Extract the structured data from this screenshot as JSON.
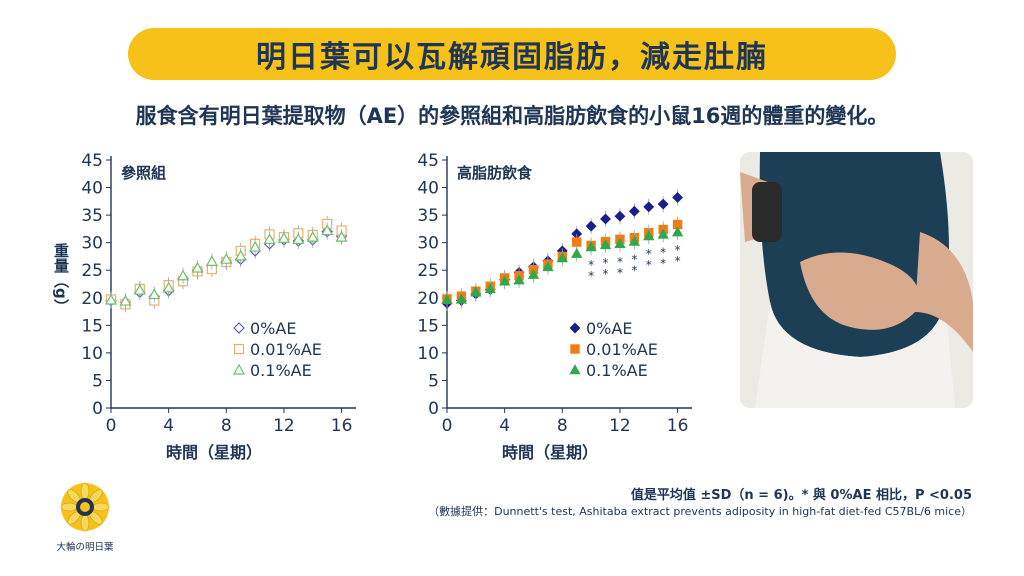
{
  "title": "明日葉可以瓦解頑固脂肪，減走肚腩",
  "subtitle": "服食含有明日葉提取物（AE）的參照組和高脂肪飲食的小鼠16週的體重的變化。",
  "note": "值是平均值 ±SD（n = 6)。* 與 0%AE 相比，P <0.05",
  "source": "（數據提供：Dunnett's test, Ashitaba extract prevents adiposity in high-fat diet-fed C57BL/6 mice）",
  "logo": {
    "text": "大輪の明日葉",
    "icon": "sunflower-icon"
  },
  "photo": {
    "icon": "belly-photo"
  },
  "colors": {
    "banner": "#f6c21a",
    "text": "#1f3554",
    "series_0": "#1b1f8a",
    "series_001": "#f07d12",
    "series_01": "#2ea84a"
  },
  "chart_data": [
    {
      "type": "scatter",
      "panel_title": "參照組",
      "xlabel": "時間（星期）",
      "ylabel": "重量（g）",
      "xlim": [
        0,
        17
      ],
      "ylim": [
        0,
        45
      ],
      "xticks": [
        0,
        4,
        8,
        12,
        16
      ],
      "yticks": [
        0,
        5,
        10,
        15,
        20,
        25,
        30,
        35,
        40,
        45
      ],
      "legend": "bottom-right",
      "x": [
        0,
        1,
        2,
        3,
        4,
        5,
        6,
        7,
        8,
        9,
        10,
        11,
        12,
        13,
        14,
        15,
        16
      ],
      "series": [
        {
          "name": "0%AE",
          "marker": "diamond-open",
          "values": [
            19.5,
            19.2,
            21.0,
            20.2,
            21.3,
            23.5,
            25.0,
            25.8,
            26.5,
            27.0,
            28.5,
            29.8,
            30.5,
            30.3,
            30.5,
            32.0,
            31.2
          ]
        },
        {
          "name": "0.01%AE",
          "marker": "square-open",
          "values": [
            19.7,
            18.8,
            21.6,
            19.5,
            22.3,
            23.0,
            24.8,
            25.2,
            26.5,
            28.5,
            29.8,
            31.5,
            31.0,
            31.7,
            31.4,
            33.4,
            32.2
          ]
        },
        {
          "name": "0.1%AE",
          "marker": "triangle-open",
          "values": [
            19.6,
            19.4,
            21.4,
            20.6,
            21.8,
            24.0,
            25.4,
            26.6,
            27.0,
            27.6,
            29.2,
            30.6,
            30.8,
            30.6,
            31.0,
            32.2,
            31.0
          ]
        }
      ]
    },
    {
      "type": "scatter",
      "panel_title": "高脂肪飲食",
      "xlabel": "時間（星期）",
      "xlim": [
        0,
        17
      ],
      "ylim": [
        0,
        45
      ],
      "xticks": [
        0,
        4,
        8,
        12,
        16
      ],
      "yticks": [
        0,
        5,
        10,
        15,
        20,
        25,
        30,
        35,
        40,
        45
      ],
      "legend": "bottom-right",
      "x": [
        0,
        1,
        2,
        3,
        4,
        5,
        6,
        7,
        8,
        9,
        10,
        11,
        12,
        13,
        14,
        15,
        16
      ],
      "series": [
        {
          "name": "0%AE",
          "marker": "diamond-filled",
          "values": [
            19.0,
            19.5,
            20.7,
            21.5,
            23.3,
            24.6,
            25.6,
            26.7,
            28.5,
            31.6,
            33.0,
            34.3,
            34.8,
            35.7,
            36.5,
            37.0,
            38.2
          ]
        },
        {
          "name": "0.01%AE",
          "marker": "square-filled",
          "values": [
            19.8,
            20.3,
            21.2,
            22.1,
            23.6,
            24.0,
            25.1,
            26.1,
            27.5,
            30.1,
            29.5,
            30.2,
            30.6,
            30.9,
            31.8,
            32.4,
            33.3
          ]
        },
        {
          "name": "0.1%AE",
          "marker": "triangle-filled",
          "values": [
            19.6,
            19.7,
            21.0,
            21.6,
            23.0,
            23.2,
            24.2,
            25.6,
            27.2,
            28.0,
            29.2,
            29.6,
            29.8,
            30.2,
            31.2,
            31.5,
            31.9
          ]
        }
      ],
      "annotations": [
        {
          "x": 10,
          "text": "*"
        },
        {
          "x": 10,
          "text": "*"
        },
        {
          "x": 11,
          "text": "*"
        },
        {
          "x": 11,
          "text": "*"
        },
        {
          "x": 12,
          "text": "*"
        },
        {
          "x": 12,
          "text": "*"
        },
        {
          "x": 13,
          "text": "*"
        },
        {
          "x": 13,
          "text": "*"
        },
        {
          "x": 14,
          "text": "*"
        },
        {
          "x": 14,
          "text": "*"
        },
        {
          "x": 15,
          "text": "*"
        },
        {
          "x": 15,
          "text": "*"
        },
        {
          "x": 16,
          "text": "*"
        },
        {
          "x": 16,
          "text": "*"
        }
      ]
    }
  ]
}
